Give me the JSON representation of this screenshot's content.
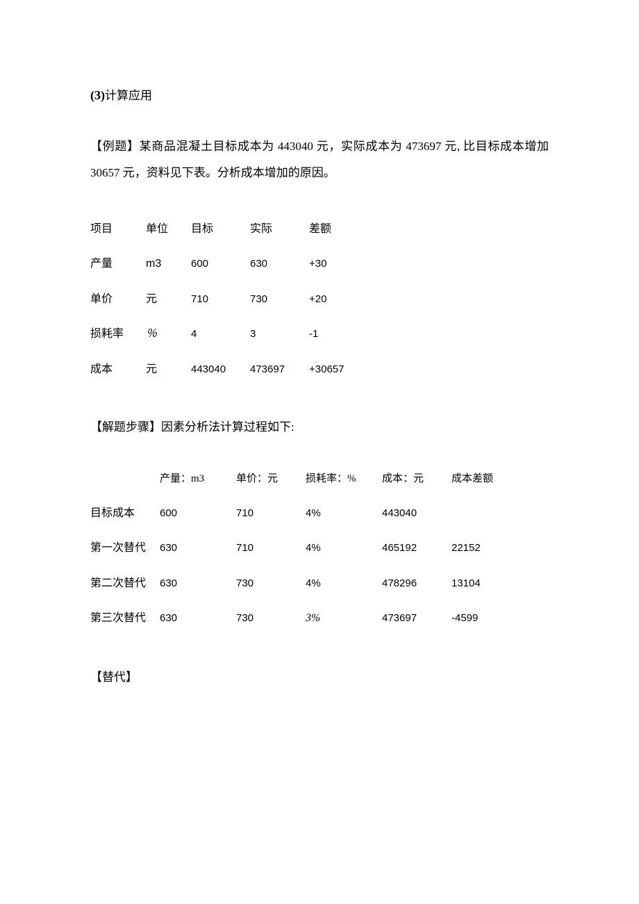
{
  "heading": {
    "number": "(3)",
    "text": "计算应用"
  },
  "problem": {
    "prefix": "【例题】某商品混凝土目标成本为 ",
    "target_cost": "443040",
    "mid1": " 元，实际成本为 ",
    "actual_cost": "473697",
    "mid2": " 元, 比目标成本增加 ",
    "increase": "30657",
    "suffix": " 元，资料见下表。分析成本增加的原因。"
  },
  "table1": {
    "headers": [
      "项目",
      "单位",
      "目标",
      "实际",
      "差额"
    ],
    "rows": [
      {
        "label": "产量",
        "unit": "m3",
        "unit_class": "unit-m3",
        "target": "600",
        "actual": "630",
        "diff": "+30"
      },
      {
        "label": "单价",
        "unit": "元",
        "unit_class": "",
        "target": "710",
        "actual": "730",
        "diff": "+20"
      },
      {
        "label": "损耗率",
        "unit": "％",
        "unit_class": "unit-pct",
        "target": "4",
        "actual": "3",
        "diff": "-1"
      },
      {
        "label": "成本",
        "unit": "元",
        "unit_class": "",
        "target": "443040",
        "actual": "473697",
        "diff": "+30657"
      }
    ]
  },
  "solution_intro": "【解题步骤】因素分析法计算过程如下:",
  "table2": {
    "headers": [
      "",
      "产量：m3",
      "单价：元",
      "损耗率：%",
      "成本：元",
      "成本差额"
    ],
    "rows": [
      {
        "label": "目标成本",
        "prod": "600",
        "price": "710",
        "loss": "4%",
        "loss_italic": false,
        "cost": "443040",
        "diff": ""
      },
      {
        "label": "第一次替代",
        "prod": "630",
        "price": "710",
        "loss": "4%",
        "loss_italic": false,
        "cost": "465192",
        "diff": "22152"
      },
      {
        "label": "第二次替代",
        "prod": "630",
        "price": "730",
        "loss": "4%",
        "loss_italic": false,
        "cost": "478296",
        "diff": "13104"
      },
      {
        "label": "第三次替代",
        "prod": "630",
        "price": "730",
        "loss": "3%",
        "loss_italic": true,
        "cost": "473697",
        "diff": "-4599"
      }
    ]
  },
  "substitution_label": "【替代】"
}
